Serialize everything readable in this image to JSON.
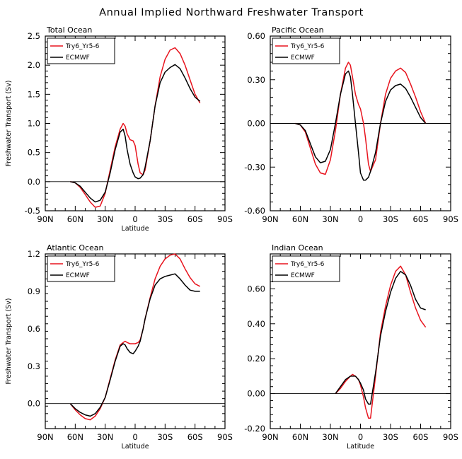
{
  "figure": {
    "title": "Annual Implied Northward Freshwater Transport"
  },
  "colors": {
    "model": "#e8141e",
    "reference": "#000000",
    "zero_line": "#000000"
  },
  "chart_data": [
    {
      "type": "line",
      "title": "Total Ocean",
      "xlabel": "Latitude",
      "ylabel": "Freshwater Transport (Sv)",
      "xlim": [
        -90,
        90
      ],
      "xticks": [
        "90N",
        "60N",
        "30N",
        "0",
        "30S",
        "60S",
        "90S"
      ],
      "ylim": [
        -0.5,
        2.5
      ],
      "yticks": [
        "-0.5",
        "0.0",
        "0.5",
        "1.0",
        "1.5",
        "2.0",
        "2.5"
      ],
      "legend": "top-left",
      "series": [
        {
          "name": "Try6_Yr5-6",
          "color": "#e8141e",
          "x": [
            -65,
            -60,
            -55,
            -50,
            -45,
            -40,
            -35,
            -30,
            -25,
            -20,
            -15,
            -12,
            -10,
            -8,
            -5,
            -2,
            0,
            3,
            5,
            8,
            10,
            15,
            20,
            25,
            30,
            35,
            40,
            45,
            50,
            55,
            60,
            65
          ],
          "y": [
            0.0,
            -0.02,
            -0.1,
            -0.22,
            -0.35,
            -0.44,
            -0.42,
            -0.2,
            0.2,
            0.6,
            0.9,
            1.0,
            0.95,
            0.82,
            0.72,
            0.7,
            0.62,
            0.3,
            0.15,
            0.12,
            0.2,
            0.7,
            1.3,
            1.8,
            2.1,
            2.26,
            2.3,
            2.2,
            2.0,
            1.75,
            1.5,
            1.35
          ]
        },
        {
          "name": "ECMWF",
          "color": "#000000",
          "x": [
            -65,
            -60,
            -55,
            -50,
            -45,
            -40,
            -35,
            -30,
            -25,
            -20,
            -15,
            -12,
            -10,
            -8,
            -5,
            -2,
            0,
            3,
            5,
            8,
            10,
            15,
            20,
            25,
            30,
            35,
            40,
            45,
            50,
            55,
            60,
            65
          ],
          "y": [
            0.0,
            -0.02,
            -0.08,
            -0.18,
            -0.28,
            -0.35,
            -0.32,
            -0.18,
            0.15,
            0.55,
            0.85,
            0.9,
            0.78,
            0.55,
            0.3,
            0.15,
            0.08,
            0.05,
            0.06,
            0.12,
            0.25,
            0.7,
            1.3,
            1.7,
            1.88,
            1.96,
            2.01,
            1.94,
            1.78,
            1.6,
            1.45,
            1.38
          ]
        }
      ]
    },
    {
      "type": "line",
      "title": "Pacific Ocean",
      "xlabel": "",
      "ylabel": "",
      "xlim": [
        -90,
        90
      ],
      "xticks": [
        "90N",
        "60N",
        "30N",
        "0",
        "30S",
        "60S",
        "90S"
      ],
      "ylim": [
        -0.6,
        0.6
      ],
      "yticks": [
        "-0.60",
        "-0.30",
        "0.00",
        "0.30",
        "0.60"
      ],
      "legend": "top-left",
      "series": [
        {
          "name": "Try6_Yr5-6",
          "color": "#e8141e",
          "x": [
            -65,
            -60,
            -55,
            -50,
            -45,
            -40,
            -35,
            -30,
            -25,
            -20,
            -15,
            -12,
            -10,
            -8,
            -5,
            -2,
            0,
            3,
            5,
            8,
            10,
            15,
            20,
            25,
            30,
            35,
            40,
            45,
            50,
            55,
            60,
            65
          ],
          "y": [
            0.0,
            -0.01,
            -0.06,
            -0.17,
            -0.28,
            -0.34,
            -0.35,
            -0.25,
            -0.05,
            0.2,
            0.38,
            0.42,
            0.4,
            0.32,
            0.2,
            0.13,
            0.1,
            0.0,
            -0.1,
            -0.28,
            -0.33,
            -0.25,
            0.0,
            0.2,
            0.31,
            0.36,
            0.38,
            0.35,
            0.27,
            0.18,
            0.08,
            0.0
          ]
        },
        {
          "name": "ECMWF",
          "color": "#000000",
          "x": [
            -65,
            -60,
            -55,
            -50,
            -45,
            -40,
            -35,
            -30,
            -25,
            -20,
            -15,
            -12,
            -10,
            -8,
            -5,
            -2,
            0,
            3,
            5,
            8,
            10,
            15,
            20,
            25,
            30,
            35,
            40,
            45,
            50,
            55,
            60,
            65
          ],
          "y": [
            0.0,
            -0.01,
            -0.05,
            -0.14,
            -0.23,
            -0.27,
            -0.26,
            -0.18,
            0.0,
            0.2,
            0.34,
            0.36,
            0.32,
            0.2,
            0.0,
            -0.2,
            -0.34,
            -0.39,
            -0.39,
            -0.37,
            -0.33,
            -0.2,
            0.0,
            0.15,
            0.23,
            0.26,
            0.27,
            0.24,
            0.18,
            0.11,
            0.04,
            0.0
          ]
        }
      ]
    },
    {
      "type": "line",
      "title": "Atlantic Ocean",
      "xlabel": "Latitude",
      "ylabel": "Freshwater Transport (Sv)",
      "xlim": [
        -90,
        90
      ],
      "xticks": [
        "90N",
        "60N",
        "30N",
        "0",
        "30S",
        "60S",
        "90S"
      ],
      "ylim": [
        -0.2,
        1.2
      ],
      "yticks": [
        "0.0",
        "0.3",
        "0.6",
        "0.9",
        "1.2"
      ],
      "legend": "top-left",
      "series": [
        {
          "name": "Try6_Yr5-6",
          "color": "#e8141e",
          "x": [
            -65,
            -60,
            -55,
            -50,
            -45,
            -40,
            -35,
            -30,
            -25,
            -20,
            -15,
            -12,
            -10,
            -8,
            -5,
            -2,
            0,
            3,
            5,
            8,
            10,
            15,
            20,
            25,
            30,
            35,
            40,
            45,
            50,
            55,
            60,
            65
          ],
          "y": [
            0.0,
            -0.05,
            -0.09,
            -0.12,
            -0.13,
            -0.1,
            -0.04,
            0.05,
            0.2,
            0.35,
            0.47,
            0.49,
            0.5,
            0.49,
            0.48,
            0.48,
            0.48,
            0.49,
            0.51,
            0.6,
            0.68,
            0.85,
            1.0,
            1.1,
            1.16,
            1.19,
            1.2,
            1.16,
            1.08,
            1.01,
            0.96,
            0.94
          ]
        },
        {
          "name": "ECMWF",
          "color": "#000000",
          "x": [
            -65,
            -60,
            -55,
            -50,
            -45,
            -40,
            -35,
            -30,
            -25,
            -20,
            -15,
            -12,
            -10,
            -8,
            -5,
            -2,
            0,
            3,
            5,
            8,
            10,
            15,
            20,
            25,
            30,
            35,
            40,
            45,
            50,
            55,
            60,
            65
          ],
          "y": [
            0.0,
            -0.04,
            -0.07,
            -0.09,
            -0.1,
            -0.08,
            -0.03,
            0.05,
            0.19,
            0.34,
            0.46,
            0.48,
            0.47,
            0.44,
            0.41,
            0.4,
            0.42,
            0.46,
            0.5,
            0.6,
            0.68,
            0.84,
            0.95,
            1.0,
            1.02,
            1.03,
            1.04,
            1.0,
            0.95,
            0.91,
            0.9,
            0.9
          ]
        }
      ]
    },
    {
      "type": "line",
      "title": "Indian Ocean",
      "xlabel": "Latitude",
      "ylabel": "",
      "xlim": [
        -90,
        90
      ],
      "xticks": [
        "90N",
        "60N",
        "30N",
        "0",
        "30S",
        "60S",
        "90S"
      ],
      "ylim": [
        -0.2,
        0.8
      ],
      "yticks": [
        "-0.20",
        "0.00",
        "0.20",
        "0.40",
        "0.60"
      ],
      "legend": "top-left",
      "series": [
        {
          "name": "Try6_Yr5-6",
          "color": "#e8141e",
          "x": [
            -25,
            -20,
            -15,
            -10,
            -8,
            -5,
            -2,
            0,
            3,
            5,
            8,
            10,
            15,
            20,
            25,
            30,
            35,
            40,
            45,
            50,
            55,
            60,
            65
          ],
          "y": [
            0.0,
            0.03,
            0.07,
            0.1,
            0.11,
            0.1,
            0.08,
            0.05,
            -0.02,
            -0.08,
            -0.14,
            -0.14,
            0.1,
            0.35,
            0.5,
            0.62,
            0.7,
            0.73,
            0.68,
            0.58,
            0.49,
            0.42,
            0.38
          ]
        },
        {
          "name": "ECMWF",
          "color": "#000000",
          "x": [
            -25,
            -20,
            -15,
            -10,
            -8,
            -5,
            -2,
            0,
            3,
            5,
            8,
            10,
            15,
            20,
            25,
            30,
            35,
            40,
            45,
            50,
            55,
            60,
            65
          ],
          "y": [
            0.0,
            0.04,
            0.08,
            0.1,
            0.1,
            0.1,
            0.08,
            0.06,
            0.02,
            -0.03,
            -0.06,
            -0.06,
            0.12,
            0.33,
            0.47,
            0.58,
            0.66,
            0.7,
            0.68,
            0.62,
            0.54,
            0.49,
            0.48
          ]
        }
      ]
    }
  ]
}
